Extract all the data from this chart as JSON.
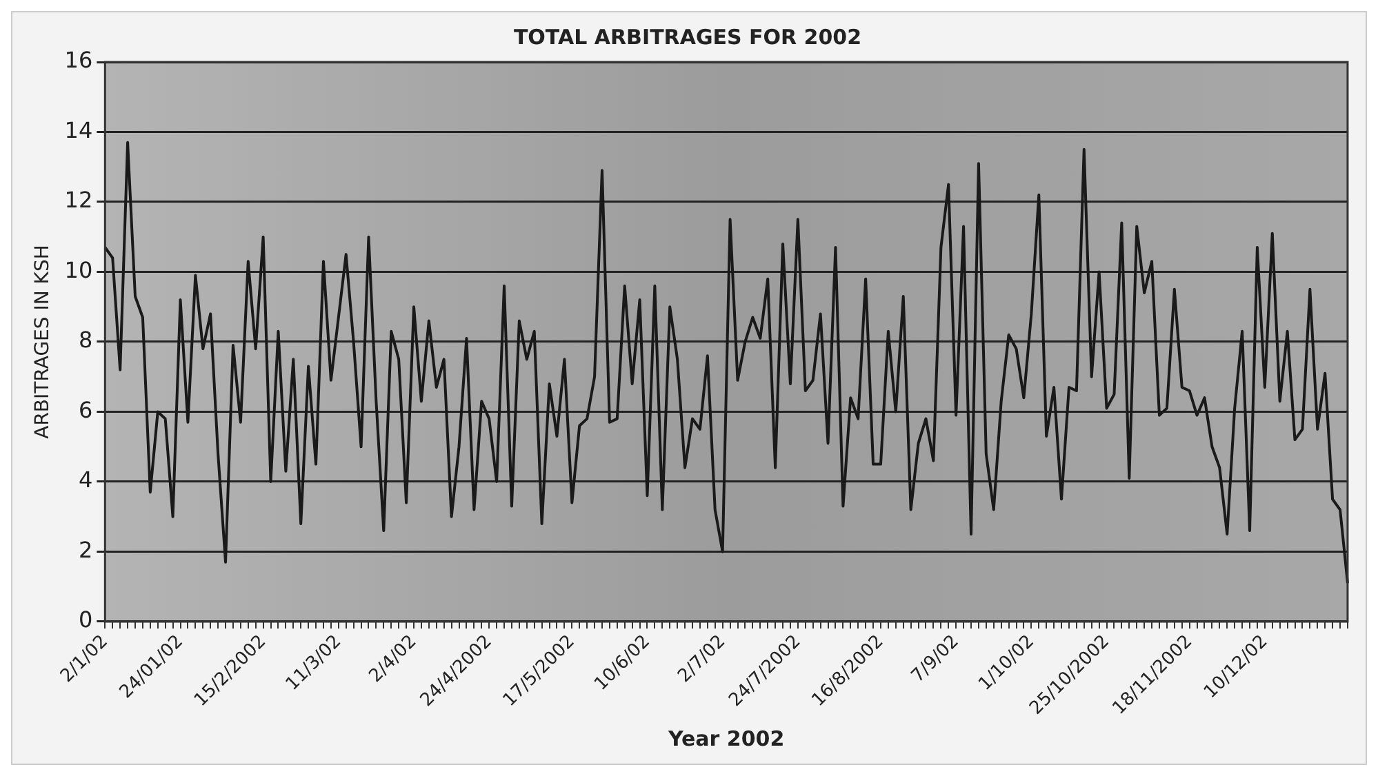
{
  "chart_data": {
    "type": "line",
    "title": "TOTAL ARBITRAGES FOR 2002",
    "xlabel": "Year 2002",
    "ylabel": "ARBITRAGES IN KSH",
    "categories": [
      "2/1/02",
      null,
      null,
      null,
      null,
      null,
      null,
      null,
      null,
      null,
      "24/01/02",
      null,
      null,
      null,
      null,
      null,
      null,
      null,
      null,
      null,
      null,
      "15/2/2002",
      null,
      null,
      null,
      null,
      null,
      null,
      null,
      null,
      null,
      "11/3/02",
      null,
      null,
      null,
      null,
      null,
      null,
      null,
      null,
      null,
      "2/4/02",
      null,
      null,
      null,
      null,
      null,
      null,
      null,
      null,
      null,
      "24/4/2002",
      null,
      null,
      null,
      null,
      null,
      null,
      null,
      null,
      null,
      null,
      "17/5/2002",
      null,
      null,
      null,
      null,
      null,
      null,
      null,
      null,
      null,
      "10/6/02",
      null,
      null,
      null,
      null,
      null,
      null,
      null,
      null,
      null,
      "2/7/02",
      null,
      null,
      null,
      null,
      null,
      null,
      null,
      null,
      null,
      "24/7/2002",
      null,
      null,
      null,
      null,
      null,
      null,
      null,
      null,
      null,
      null,
      "16/8/2002",
      null,
      null,
      null,
      null,
      null,
      null,
      null,
      null,
      null,
      "7/9/02",
      null,
      null,
      null,
      null,
      null,
      null,
      null,
      null,
      null,
      "1/10/02",
      null,
      null,
      null,
      null,
      null,
      null,
      null,
      null,
      null,
      "25/10/2002",
      null,
      null,
      null,
      null,
      null,
      null,
      null,
      null,
      null,
      null,
      "18/11/2002",
      null,
      null,
      null,
      null,
      null,
      null,
      null,
      null,
      null,
      "10/12/02",
      null,
      null,
      null,
      null,
      null,
      null,
      null,
      null,
      null,
      null,
      null
    ],
    "series": [
      {
        "color": "#1a1a1a",
        "values": [
          10.7,
          10.4,
          7.2,
          13.7,
          9.3,
          8.7,
          3.7,
          6,
          5.8,
          3,
          9.2,
          5.7,
          9.9,
          7.8,
          8.8,
          4.8,
          1.7,
          7.9,
          5.7,
          10.3,
          7.8,
          11,
          4,
          8.3,
          4.3,
          7.5,
          2.8,
          7.3,
          4.5,
          10.3,
          6.9,
          8.7,
          10.5,
          8,
          5,
          11,
          6.3,
          2.6,
          8.3,
          7.5,
          3.4,
          9,
          6.3,
          8.6,
          6.7,
          7.5,
          3,
          5,
          8.1,
          3.2,
          6.3,
          5.8,
          4,
          9.6,
          3.3,
          8.6,
          7.5,
          8.3,
          2.8,
          6.8,
          5.3,
          7.5,
          3.4,
          5.6,
          5.8,
          7,
          12.9,
          5.7,
          5.8,
          9.6,
          6.8,
          9.2,
          3.6,
          9.6,
          3.2,
          9,
          7.5,
          4.4,
          5.8,
          5.5,
          7.6,
          3.2,
          2,
          11.5,
          6.9,
          8,
          8.7,
          8.1,
          9.8,
          4.4,
          10.8,
          6.8,
          11.5,
          6.6,
          6.9,
          8.8,
          5.1,
          10.7,
          3.3,
          6.4,
          5.8,
          9.8,
          4.5,
          4.5,
          8.3,
          6,
          9.3,
          3.2,
          5.1,
          5.8,
          4.6,
          10.7,
          12.5,
          5.9,
          11.3,
          2.5,
          13.1,
          4.8,
          3.2,
          6.3,
          8.2,
          7.8,
          6.4,
          8.8,
          12.2,
          5.3,
          6.7,
          3.5,
          6.7,
          6.6,
          13.5,
          7,
          10,
          6.1,
          6.5,
          11.4,
          4.1,
          11.3,
          9.4,
          10.3,
          5.9,
          6.1,
          9.5,
          6.7,
          6.6,
          5.9,
          6.4,
          5,
          4.4,
          2.5,
          6.1,
          8.3,
          2.6,
          10.7,
          6.7,
          11.1,
          6.3,
          8.3,
          5.2,
          5.5,
          9.5,
          5.5,
          7.1,
          3.5,
          3.2,
          1.1
        ]
      }
    ],
    "ylim": [
      0,
      16
    ],
    "yticks": [
      0,
      2,
      4,
      6,
      8,
      10,
      12,
      14,
      16
    ],
    "grid": "y",
    "legend": false,
    "marker": "none",
    "line_style": "solid"
  }
}
